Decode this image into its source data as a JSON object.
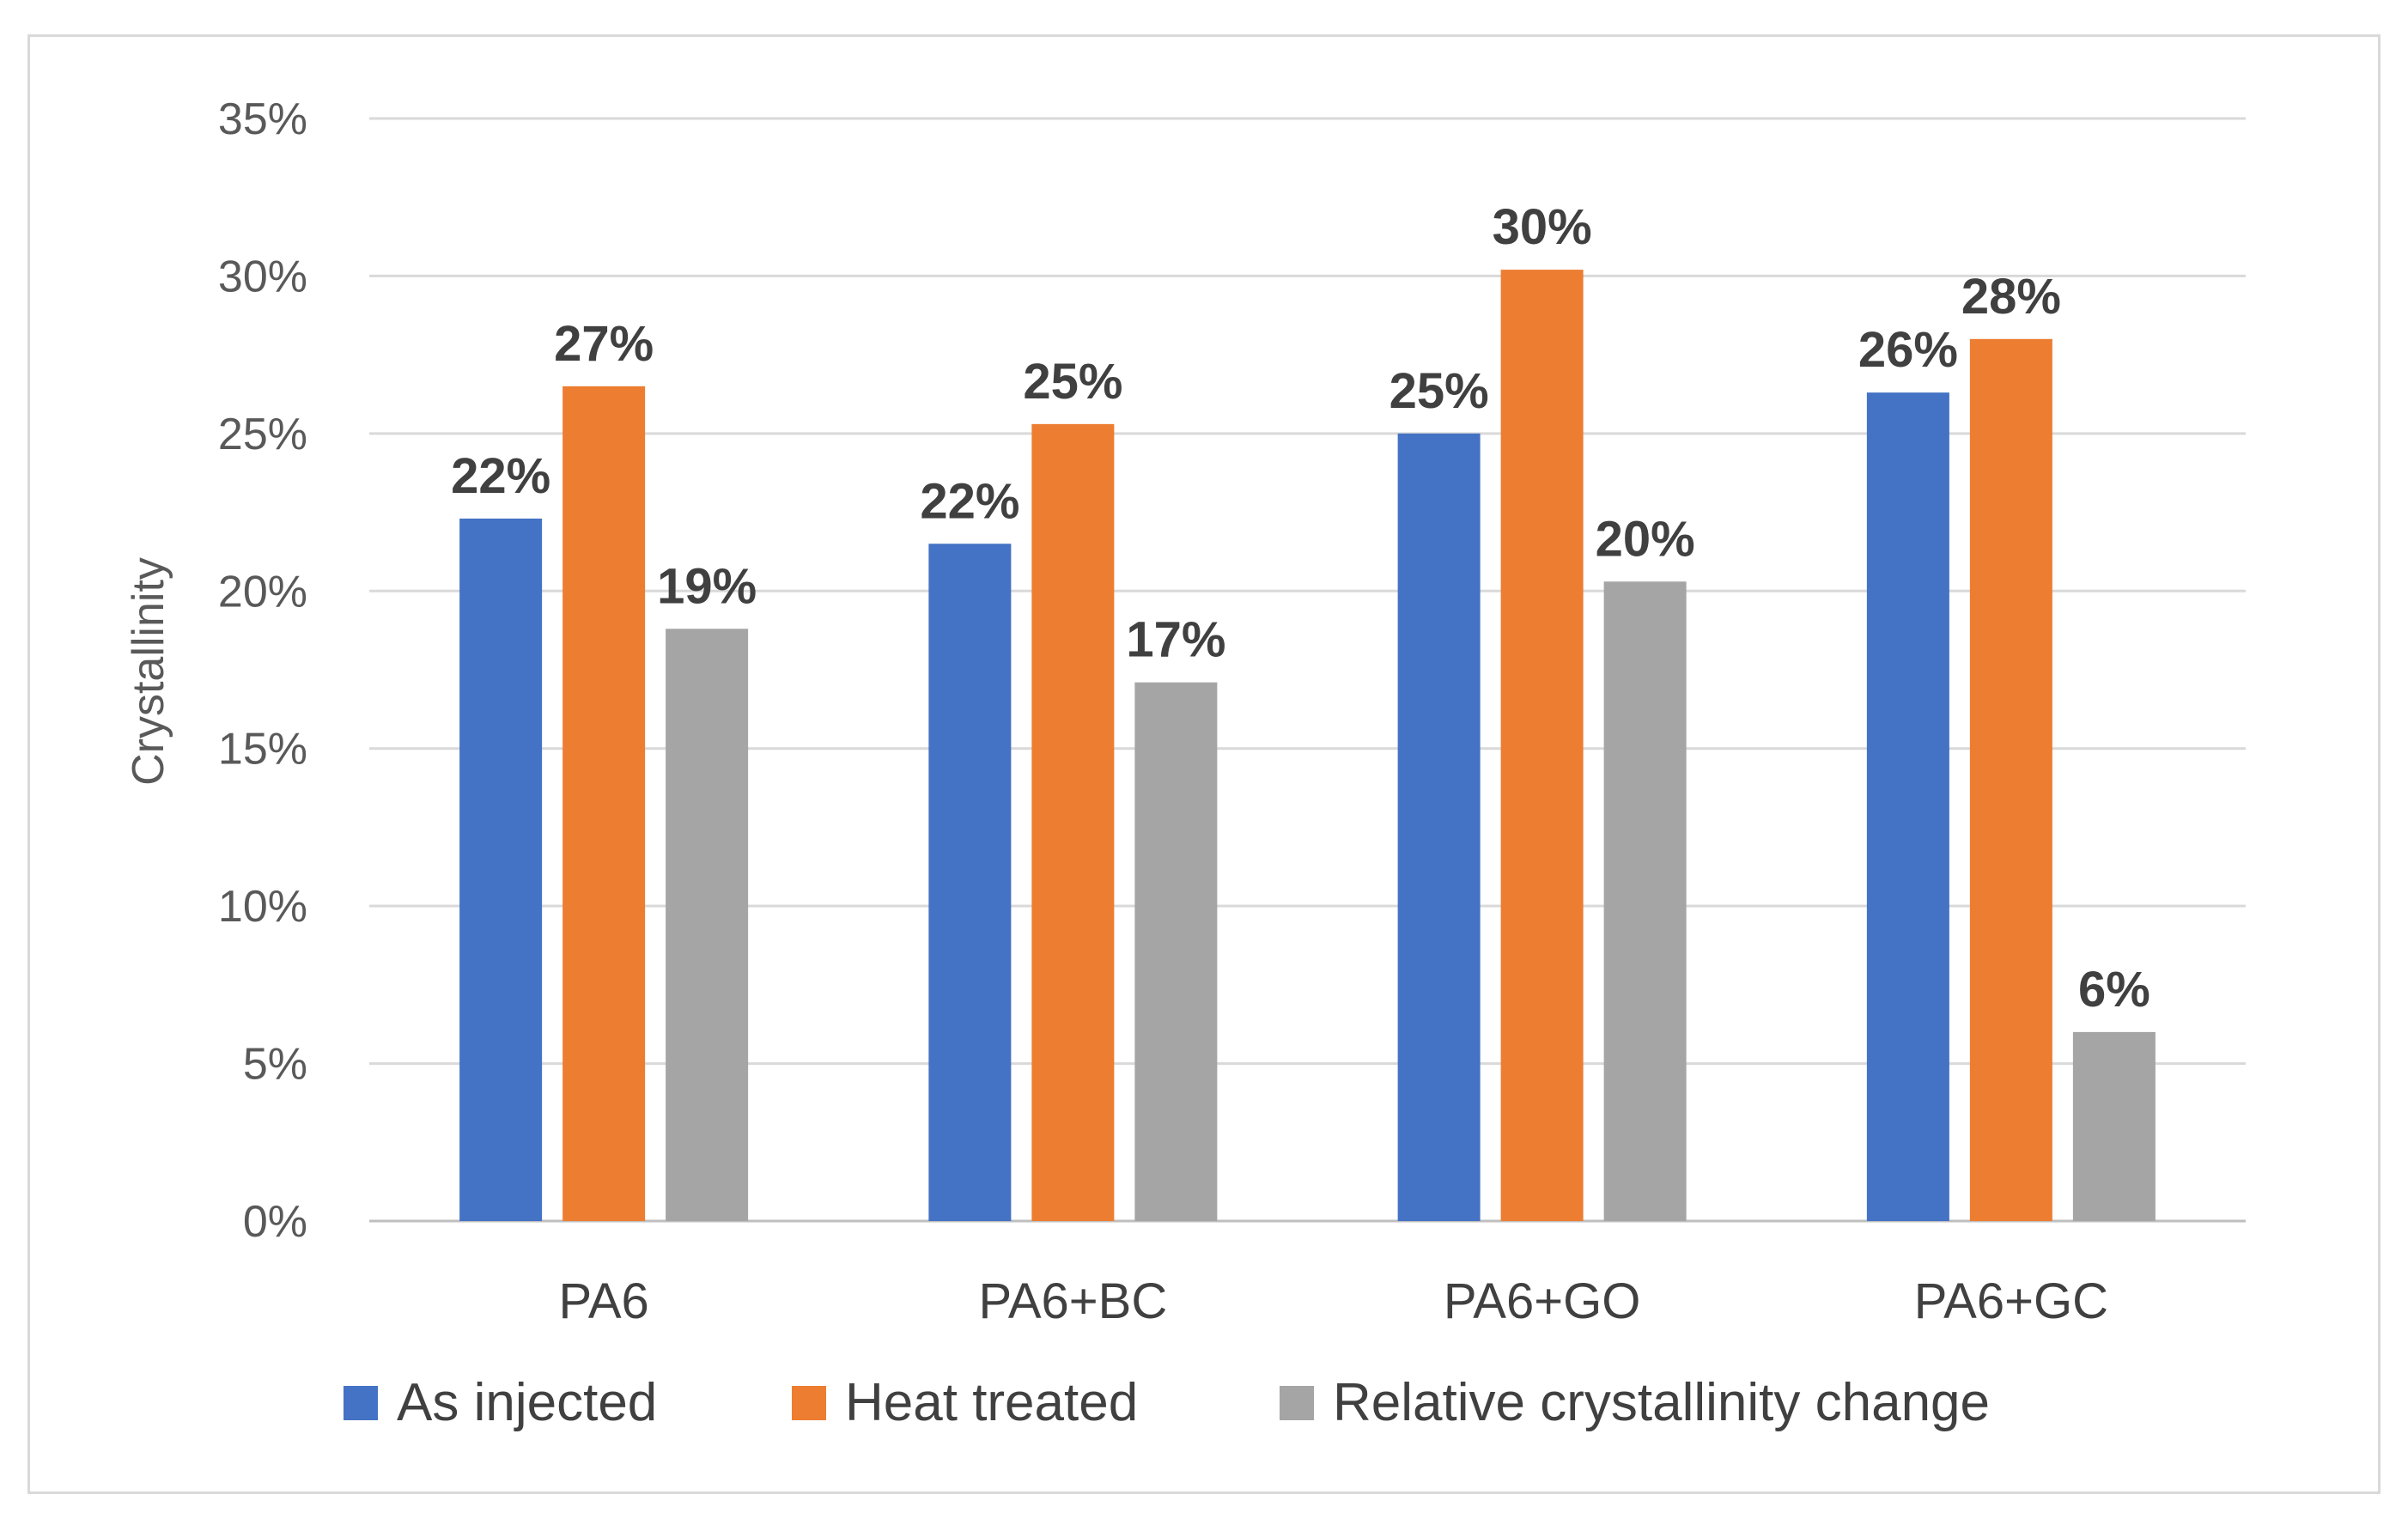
{
  "chart_data": {
    "type": "bar",
    "title": "",
    "xlabel": "",
    "ylabel": "Crystallinity",
    "ylim": [
      0,
      0.35
    ],
    "yticks": [
      0,
      0.05,
      0.1,
      0.15,
      0.2,
      0.25,
      0.3,
      0.35
    ],
    "ytick_labels": [
      "0%",
      "5%",
      "10%",
      "15%",
      "20%",
      "25%",
      "30%",
      "35%"
    ],
    "grid": true,
    "legend_position": "bottom",
    "categories": [
      "PA6",
      "PA6+BC",
      "PA6+GO",
      "PA6+GC"
    ],
    "series": [
      {
        "name": "As injected",
        "color": "#4472c4",
        "values": [
          0.223,
          0.215,
          0.25,
          0.263
        ],
        "labels": [
          "22%",
          "22%",
          "25%",
          "26%"
        ]
      },
      {
        "name": "Heat treated",
        "color": "#ed7d31",
        "values": [
          0.265,
          0.253,
          0.302,
          0.28
        ],
        "labels": [
          "27%",
          "25%",
          "30%",
          "28%"
        ]
      },
      {
        "name": "Relative crystallinity change",
        "color": "#a5a5a5",
        "values": [
          0.188,
          0.171,
          0.203,
          0.06
        ],
        "labels": [
          "19%",
          "17%",
          "20%",
          "6%"
        ]
      }
    ]
  }
}
